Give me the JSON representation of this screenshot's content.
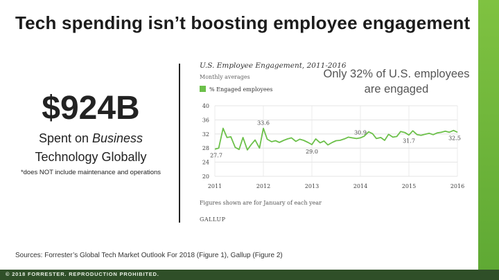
{
  "slide": {
    "title": "Tech spending isn’t boosting employee engagement",
    "big_number": "$924B",
    "spent_prefix": "Spent on ",
    "spent_emphasis": "Business",
    "spent_line2": "Technology Globally",
    "footnote": "*does NOT include maintenance and operations",
    "callout": "Only 32% of U.S. employees are engaged",
    "sources": "Sources: Forrester’s Global Tech Market Outlook For 2018 (Figure 1), Gallup (Figure 2)",
    "copyright": "© 2018 FORRESTER. REPRODUCTION PROHIBITED.",
    "accent_color": "#6cb33f",
    "footer_color": "#2f4f28"
  },
  "chart_data": {
    "type": "line",
    "title": "U.S. Employee Engagement, 2011-2016",
    "subtitle": "Monthly averages",
    "legend": [
      "% Engaged employees"
    ],
    "legend_placement": "top-left",
    "note": "Figures shown are for January of each year",
    "source_logo": "GALLUP",
    "line_color": "#6cc04a",
    "grid": true,
    "xlim": [
      2011,
      2016
    ],
    "ylim": [
      20,
      40
    ],
    "x_ticks": [
      "2011",
      "2012",
      "2013",
      "2014",
      "2015",
      "2016"
    ],
    "y_ticks": [
      20,
      24,
      28,
      32,
      36,
      40
    ],
    "series": [
      {
        "name": "% Engaged employees",
        "x": [
          2011.0,
          2011.08,
          2011.17,
          2011.25,
          2011.33,
          2011.42,
          2011.5,
          2011.58,
          2011.67,
          2011.75,
          2011.83,
          2011.92,
          2012.0,
          2012.08,
          2012.17,
          2012.25,
          2012.33,
          2012.42,
          2012.5,
          2012.58,
          2012.67,
          2012.75,
          2012.83,
          2012.92,
          2013.0,
          2013.08,
          2013.17,
          2013.25,
          2013.33,
          2013.42,
          2013.5,
          2013.58,
          2013.67,
          2013.75,
          2013.83,
          2013.92,
          2014.0,
          2014.08,
          2014.17,
          2014.25,
          2014.33,
          2014.42,
          2014.5,
          2014.58,
          2014.67,
          2014.75,
          2014.83,
          2014.92,
          2015.0,
          2015.08,
          2015.17,
          2015.25,
          2015.33,
          2015.42,
          2015.5,
          2015.58,
          2015.67,
          2015.75,
          2015.83,
          2015.92,
          2016.0
        ],
        "y": [
          27.7,
          28.0,
          33.6,
          31.0,
          31.2,
          28.2,
          27.6,
          31.0,
          27.5,
          29.0,
          30.3,
          28.0,
          33.6,
          30.5,
          29.8,
          30.1,
          29.6,
          30.2,
          30.6,
          30.9,
          29.9,
          30.5,
          30.2,
          29.6,
          29.0,
          30.6,
          29.5,
          30.0,
          28.9,
          29.6,
          30.1,
          30.2,
          30.6,
          31.1,
          30.9,
          30.7,
          30.9,
          31.4,
          32.6,
          32.1,
          30.7,
          31.0,
          30.2,
          31.9,
          31.1,
          31.3,
          32.7,
          32.4,
          31.7,
          32.9,
          31.8,
          31.6,
          31.9,
          32.2,
          31.8,
          32.3,
          32.5,
          32.8,
          32.5,
          33.0,
          32.5
        ]
      }
    ],
    "annotations": [
      {
        "x": 2011.0,
        "y": 27.7,
        "label": "27.7"
      },
      {
        "x": 2012.0,
        "y": 33.6,
        "label": "33.6"
      },
      {
        "x": 2013.0,
        "y": 29.0,
        "label": "29.0"
      },
      {
        "x": 2014.0,
        "y": 30.9,
        "label": "30.9"
      },
      {
        "x": 2015.0,
        "y": 31.7,
        "label": "31.7"
      },
      {
        "x": 2016.0,
        "y": 32.5,
        "label": "32.5"
      }
    ]
  }
}
